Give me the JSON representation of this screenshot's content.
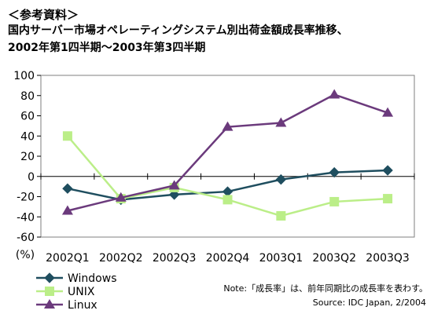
{
  "header": {
    "ref": "＜参考資料＞",
    "title_line1": "国内サーバー市場オペレーティングシステム別出荷金額成長率推移、",
    "title_line2": "2002年第1四半期～2003年第3四半期"
  },
  "chart_data": {
    "type": "line",
    "categories": [
      "2002Q1",
      "2002Q2",
      "2002Q3",
      "2002Q4",
      "2003Q1",
      "2003Q2",
      "2003Q3"
    ],
    "series": [
      {
        "name": "Windows",
        "color": "#1F4E5F",
        "marker": "diamond",
        "values": [
          -12,
          -23,
          -18,
          -15,
          -3,
          4,
          6
        ]
      },
      {
        "name": "UNIX",
        "color": "#BBEE88",
        "marker": "square",
        "values": [
          40,
          -22,
          -11,
          -23,
          -39,
          -25,
          -22
        ]
      },
      {
        "name": "Linux",
        "color": "#6B3A7C",
        "marker": "triangle",
        "values": [
          -34,
          -21,
          -9,
          49,
          53,
          81,
          63
        ]
      }
    ],
    "ylim": [
      -60,
      100
    ],
    "yticks": [
      -60,
      -40,
      -20,
      0,
      20,
      40,
      60,
      80,
      100
    ],
    "ylabel": "(%)",
    "grid": false,
    "legend_position": "bottom-left"
  },
  "notes": {
    "note": "Note:「成長率」は、前年同期比の成長率を表わす。",
    "source": "Source: IDC Japan, 2/2004"
  }
}
